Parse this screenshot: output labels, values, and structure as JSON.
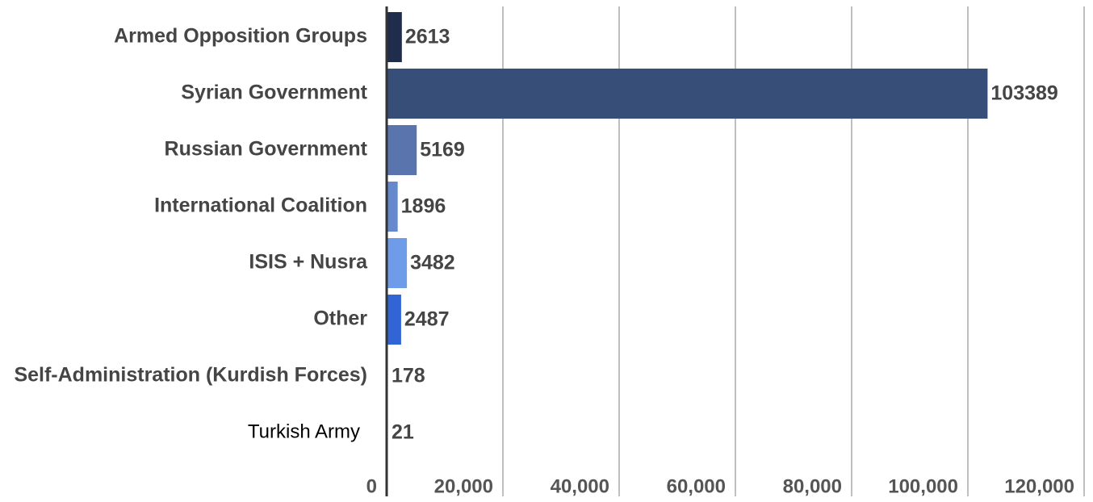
{
  "chart_data": {
    "type": "barh",
    "categories": [
      "Armed Opposition Groups",
      "Syrian Government",
      "Russian Government",
      "International Coalition",
      "ISIS + Nusra",
      "Other",
      "Self-Administration (Kurdish Forces)",
      "Turkish Army"
    ],
    "values": [
      2613,
      103389,
      5169,
      1896,
      3482,
      2487,
      178,
      21
    ],
    "colors": [
      "#1f2c4b",
      "#374e79",
      "#5a75ae",
      "#6688cc",
      "#6e9ce9",
      "#3164d4",
      "#2f4a8a",
      "#2f4a8a"
    ],
    "xlim": [
      0,
      120000
    ],
    "xticks": [
      0,
      {
        "value": 20000,
        "label": "20,000"
      },
      {
        "value": 40000,
        "label": "40,000"
      },
      {
        "value": 60000,
        "label": "60,000"
      },
      {
        "value": 80000,
        "label": "80,000"
      },
      {
        "value": 100000,
        "label": "100,000"
      },
      {
        "value": 120000,
        "label": "120,000"
      }
    ],
    "grid": true
  }
}
